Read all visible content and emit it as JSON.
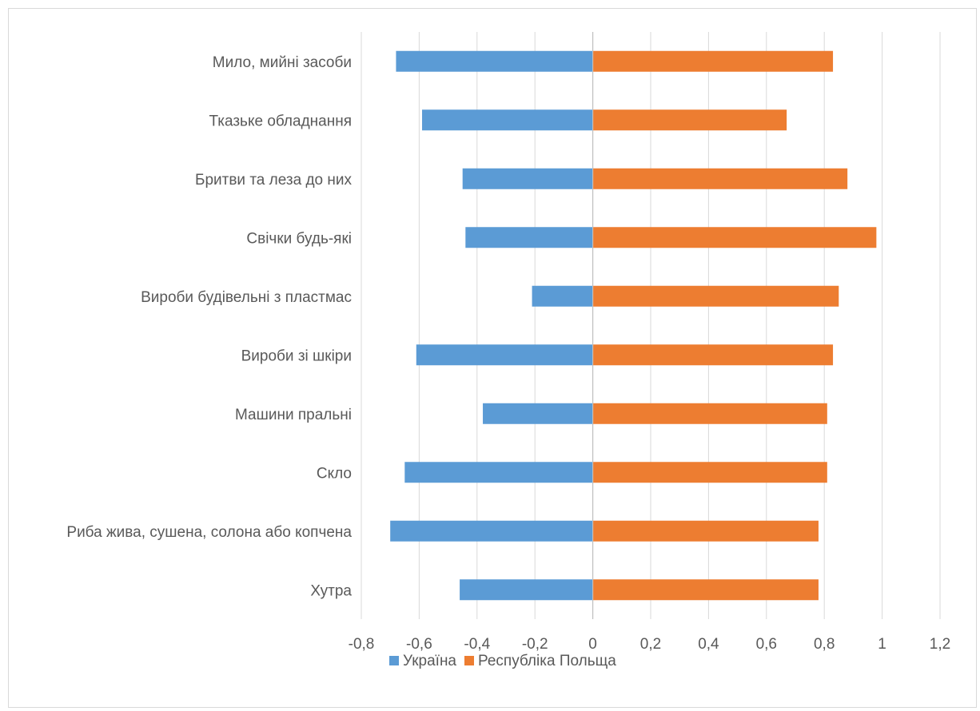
{
  "chart_data": {
    "type": "bar",
    "orientation": "horizontal",
    "categories": [
      "Мило, мийні засоби",
      "Тказьке обладнання",
      "Бритви та леза до них",
      "Свічки будь-які",
      "Вироби будівельні з пластмас",
      "Вироби зі шкіри",
      "Машини пральні",
      "Скло",
      "Риба жива, сушена, солона або копчена",
      "Хутра"
    ],
    "series": [
      {
        "name": "Україна",
        "color": "#5b9bd5",
        "values": [
          -0.68,
          -0.59,
          -0.45,
          -0.44,
          -0.21,
          -0.61,
          -0.38,
          -0.65,
          -0.7,
          -0.46
        ]
      },
      {
        "name": "Республіка Польща",
        "color": "#ed7d31",
        "values": [
          0.83,
          0.67,
          0.88,
          0.98,
          0.85,
          0.83,
          0.81,
          0.81,
          0.78,
          0.78
        ]
      }
    ],
    "xlim": [
      -0.8,
      1.2
    ],
    "xticks": [
      "-0,8",
      "-0,6",
      "-0,4",
      "-0,2",
      "0",
      "0,2",
      "0,4",
      "0,6",
      "0,8",
      "1",
      "1,2"
    ],
    "xtick_values": [
      -0.8,
      -0.6,
      -0.4,
      -0.2,
      0,
      0.2,
      0.4,
      0.6,
      0.8,
      1.0,
      1.2
    ],
    "grid": true,
    "legend_position": "bottom",
    "title": "",
    "xlabel": "",
    "ylabel": ""
  }
}
